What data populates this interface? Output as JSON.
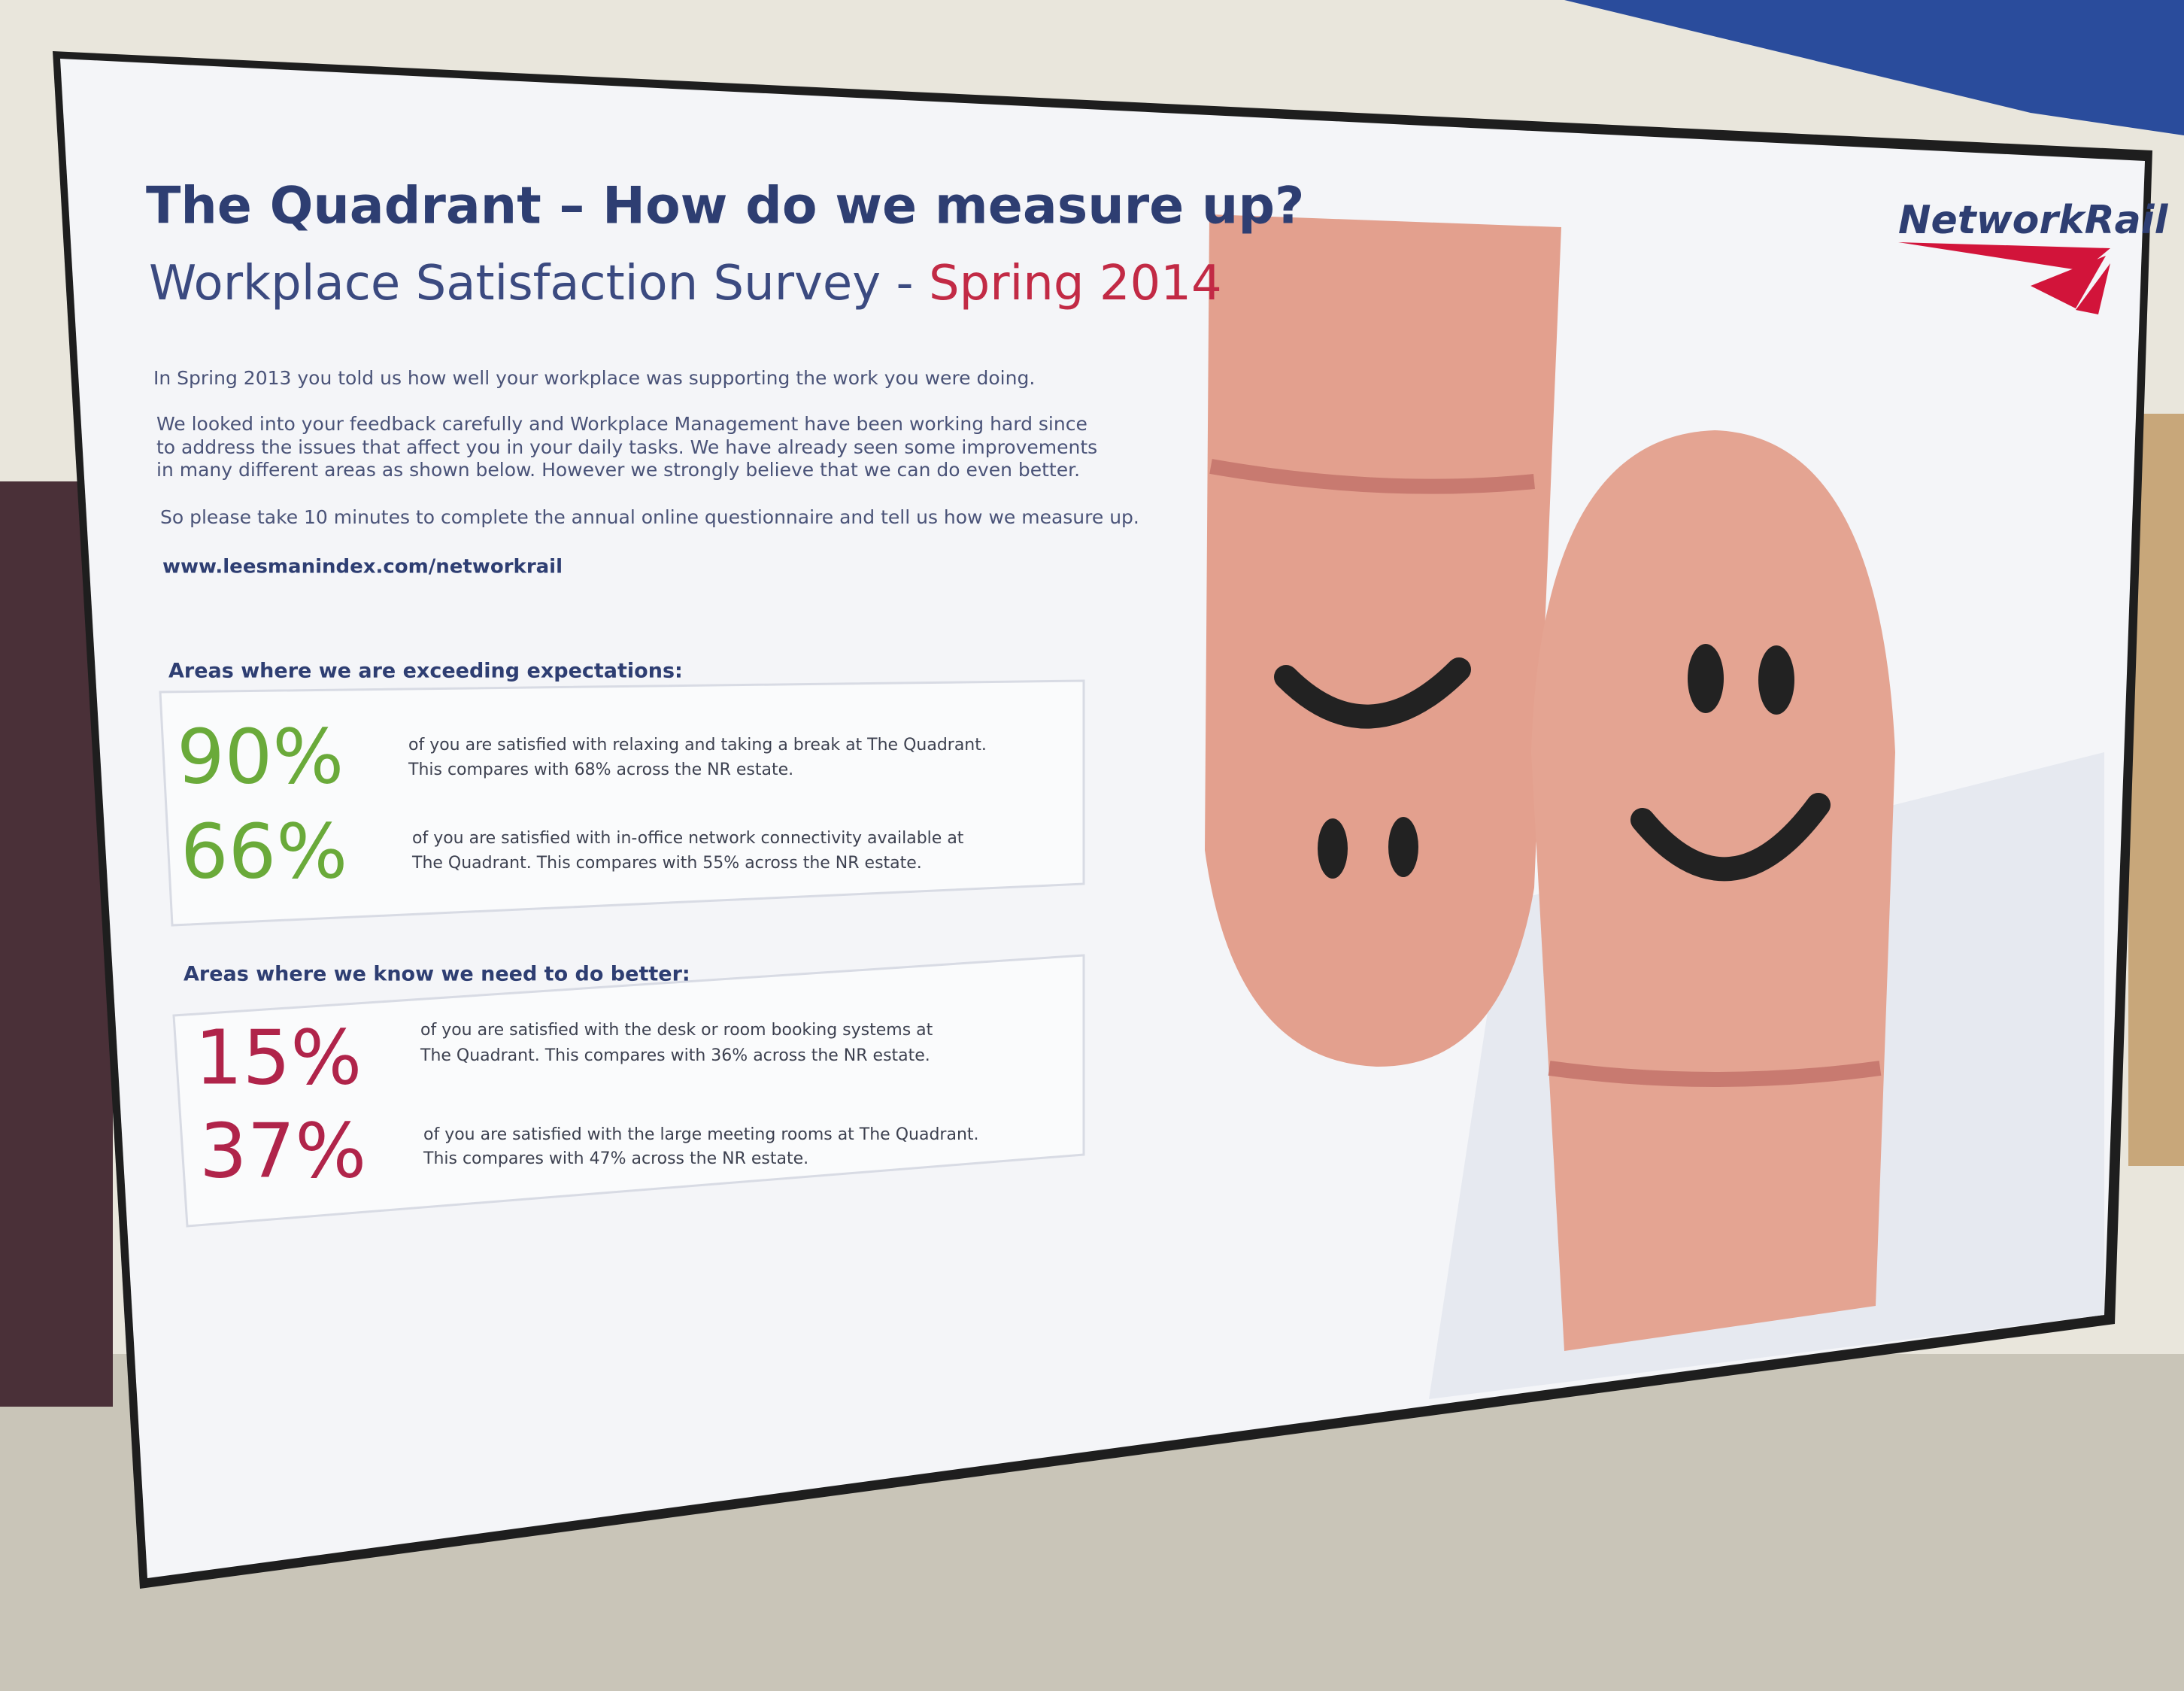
{
  "header": {
    "title": "The Quadrant – How do we measure up?",
    "subtitle": "Workplace Satisfaction Survey - ",
    "subtitle_highlight": "Spring 2014",
    "logo": "NetworkRail"
  },
  "intro": {
    "paragraphs": [
      [
        "In Spring 2013  you told us how well your workplace was supporting the work you were doing."
      ],
      [
        "We looked into your feedback carefully and Workplace Management have been working hard since",
        "to address the issues that affect you in your daily tasks. We have already seen some improvements",
        "in many different areas as shown below.  However we strongly believe that we can do even better."
      ],
      [
        "So please take 10 minutes to complete the annual online questionnaire and tell us how we measure up."
      ]
    ],
    "url": "www.leesmanindex.com/networkrail"
  },
  "sections": [
    {
      "heading": "Areas where we are exceeding expectations:",
      "items": [
        {
          "percent": "90%",
          "text": [
            "of you are satisfied with relaxing and taking a break at The Quadrant.",
            "This compares with 68% across the NR estate."
          ]
        },
        {
          "percent": "66%",
          "text": [
            "of you are satisfied with in-office network connectivity available at",
            "The Quadrant. This compares with 55% across the NR estate."
          ]
        }
      ]
    },
    {
      "heading": "Areas where we know we need to do better:",
      "items": [
        {
          "percent": "15%",
          "text": [
            "of you are satisfied with the desk or room booking systems at",
            "The Quadrant. This compares with 36% across the NR estate."
          ]
        },
        {
          "percent": "37%",
          "text": [
            "of you are satisfied with the large meeting rooms at The Quadrant.",
            "This compares with 47% across the NR estate."
          ]
        }
      ]
    }
  ]
}
